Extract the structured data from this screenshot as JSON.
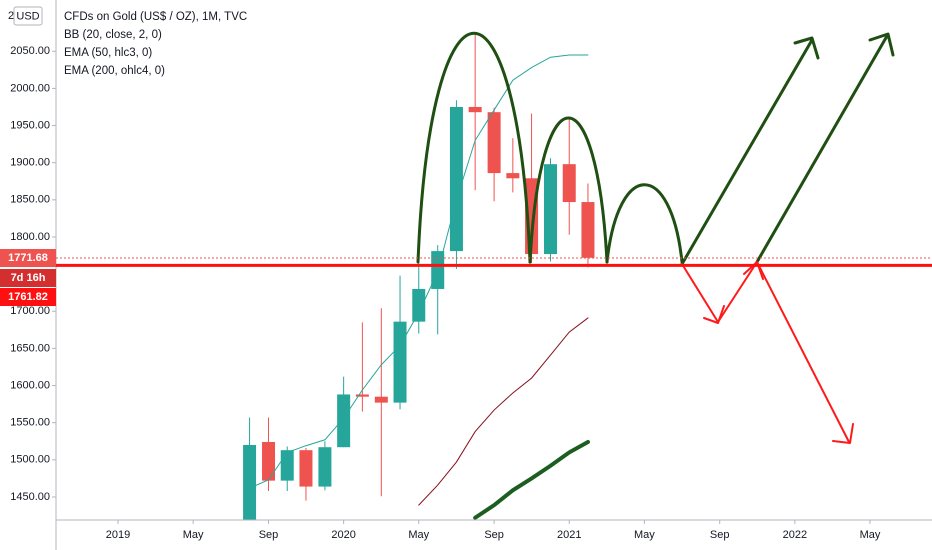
{
  "chart_data": {
    "type": "candlestick",
    "pane_label": "2",
    "currency": "USD",
    "title": "CFDs on Gold (US$ / OZ), 1M, TVC",
    "indicators": [
      "BB (20, close, 2, 0)",
      "EMA (50, hlc3, 0)",
      "EMA (200, ohlc4, 0)"
    ],
    "x": [
      2019.583,
      2019.667,
      2019.75,
      2019.833,
      2019.917,
      2020,
      2020.083,
      2020.167,
      2020.25,
      2020.333,
      2020.417,
      2020.5,
      2020.583,
      2020.667,
      2020.75,
      2020.833,
      2020.917,
      2021,
      2021.083
    ],
    "open": [
      1413,
      1524,
      1472,
      1513,
      1464,
      1517,
      1588,
      1585,
      1577,
      1686,
      1730,
      1781,
      1975,
      1968,
      1886,
      1879,
      1777,
      1898,
      1847
    ],
    "high": [
      1557,
      1557,
      1518,
      1516,
      1525,
      1612,
      1685,
      1704,
      1748,
      1765,
      1789,
      1984,
      2075,
      1974,
      1933,
      1966,
      1906,
      1959,
      1872
    ],
    "low": [
      1400,
      1458,
      1458,
      1445,
      1459,
      1517,
      1565,
      1451,
      1568,
      1670,
      1669,
      1757,
      1863,
      1848,
      1860,
      1765,
      1767,
      1803,
      1759
    ],
    "close": [
      1520,
      1472,
      1513,
      1464,
      1517,
      1588,
      1585,
      1577,
      1686,
      1730,
      1781,
      1975,
      1968,
      1886,
      1879,
      1777,
      1898,
      1847,
      1772
    ],
    "up_color": "#26a69a",
    "down_color": "#ef5350",
    "series": [
      {
        "color": "#26a69a",
        "width": 1,
        "values": [
          1462,
          1473,
          1510,
          1519,
          1527,
          1556,
          1594,
          1628,
          1654,
          1698,
          1753,
          1850,
          1930,
          1971,
          2011,
          2028,
          2042,
          2045,
          2045
        ]
      },
      {
        "color": "#880e1e",
        "width": 1,
        "values": [
          null,
          null,
          null,
          null,
          null,
          null,
          null,
          null,
          null,
          1439,
          1466,
          1497,
          1538,
          1567,
          1590,
          1610,
          1641,
          1672,
          1691
        ]
      },
      {
        "color": "#1b5e20",
        "width": 4,
        "values": [
          null,
          null,
          null,
          null,
          null,
          null,
          null,
          null,
          null,
          null,
          null,
          null,
          1422,
          1439,
          1459,
          1475,
          1492,
          1510,
          1524
        ]
      }
    ],
    "ylim": [
      1419,
      2119
    ],
    "yticks": [
      {
        "value": 1450,
        "label": "1450.00"
      },
      {
        "value": 1500,
        "label": "1500.00"
      },
      {
        "value": 1550,
        "label": "1550.00"
      },
      {
        "value": 1600,
        "label": "1600.00"
      },
      {
        "value": 1650,
        "label": "1650.00"
      },
      {
        "value": 1700,
        "label": "1700.00"
      },
      {
        "value": 1750,
        "label": "1750.00"
      },
      {
        "value": 1800,
        "label": "1800.00"
      },
      {
        "value": 1850,
        "label": "1850.00"
      },
      {
        "value": 1900,
        "label": "1900.00"
      },
      {
        "value": 1950,
        "label": "1950.00"
      },
      {
        "value": 2000,
        "label": "2000.00"
      },
      {
        "value": 2050,
        "label": "2050.00"
      }
    ],
    "xlim": [
      2018.725,
      2022.608
    ],
    "xticks": [
      2019,
      {
        "value": 2019.333,
        "label": "May"
      },
      {
        "value": 2019.667,
        "label": "Sep"
      },
      2020,
      {
        "value": 2020.333,
        "label": "May"
      },
      {
        "value": 2020.667,
        "label": "Sep"
      },
      2021,
      {
        "value": 2021.333,
        "label": "May"
      },
      {
        "value": 2021.667,
        "label": "Sep"
      },
      2022,
      {
        "value": 2022.333,
        "label": "May"
      }
    ],
    "last_price": 1771.68,
    "countdown": "7d 16h",
    "level": 1761.82,
    "level_color": "#ff1010"
  }
}
